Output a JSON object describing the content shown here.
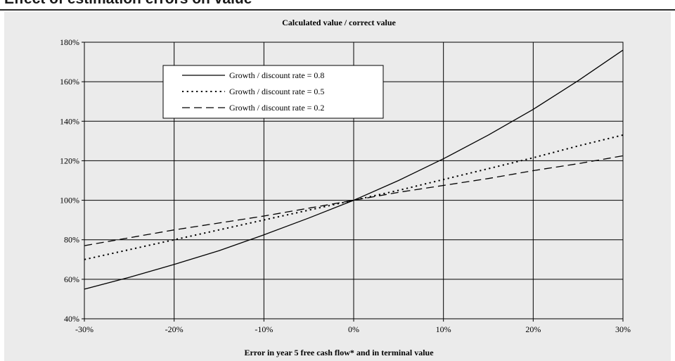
{
  "header": {
    "strip_text": "Effect of estimation errors on value"
  },
  "colors": {
    "panel_background": "#ebebeb",
    "plot_background": "#ebebeb",
    "grid": "#000000",
    "series_line": "#000000",
    "legend_background": "#ffffff"
  },
  "chart_data": {
    "type": "line",
    "title": "Calculated value / correct value",
    "xlabel": "Error in year 5 free cash flow* and in terminal value",
    "ylabel": "",
    "xlim": [
      -30,
      30
    ],
    "ylim": [
      40,
      180
    ],
    "x_ticks": [
      "-30%",
      "-20%",
      "-10%",
      "0%",
      "10%",
      "20%",
      "30%"
    ],
    "y_ticks": [
      "40%",
      "60%",
      "80%",
      "100%",
      "120%",
      "140%",
      "160%",
      "180%"
    ],
    "grid": true,
    "legend_position": "top-left",
    "x": [
      -30,
      -25,
      -20,
      -15,
      -10,
      -5,
      0,
      5,
      10,
      15,
      20,
      25,
      30
    ],
    "series": [
      {
        "name": "Growth / discount rate = 0.8",
        "style": "solid",
        "values": [
          55,
          61,
          67.5,
          74.5,
          82.5,
          91,
          100,
          110,
          121,
          133,
          146,
          160.5,
          176
        ]
      },
      {
        "name": "Growth / discount rate = 0.5",
        "style": "dotted",
        "values": [
          70,
          75,
          80,
          85,
          90,
          95,
          100,
          105,
          110.5,
          116,
          121.5,
          127.5,
          133
        ]
      },
      {
        "name": "Growth / discount rate = 0.2",
        "style": "dashed",
        "values": [
          77,
          81,
          85,
          88.5,
          92,
          96,
          100,
          104,
          107.5,
          111,
          115,
          118.5,
          122.5
        ]
      }
    ]
  }
}
